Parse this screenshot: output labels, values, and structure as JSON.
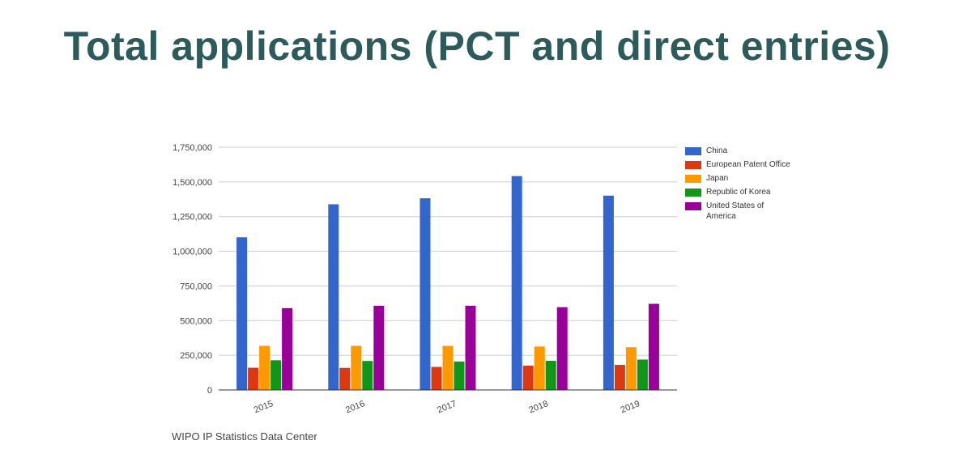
{
  "header": {
    "title": "Total applications (PCT and direct entries)"
  },
  "source": "WIPO IP Statistics Data Center",
  "chart_data": {
    "type": "bar",
    "categories": [
      "2015",
      "2016",
      "2017",
      "2018",
      "2019"
    ],
    "series": [
      {
        "name": "China",
        "color": "#3366cc",
        "values": [
          1101000,
          1339000,
          1382000,
          1542000,
          1401000
        ]
      },
      {
        "name": "European Patent Office",
        "color": "#dc3912",
        "values": [
          160000,
          159000,
          166000,
          175000,
          181000
        ]
      },
      {
        "name": "Japan",
        "color": "#ff9900",
        "values": [
          318000,
          318000,
          318000,
          313000,
          308000
        ]
      },
      {
        "name": "Republic of Korea",
        "color": "#109618",
        "values": [
          214000,
          209000,
          205000,
          210000,
          219000
        ]
      },
      {
        "name": "United States of America",
        "color": "#990099",
        "values": [
          590000,
          607000,
          607000,
          597000,
          621000
        ]
      }
    ],
    "yticks": [
      "0",
      "250,000",
      "500,000",
      "750,000",
      "1,000,000",
      "1,250,000",
      "1,500,000",
      "1,750,000"
    ],
    "ylim": [
      0,
      1750000
    ],
    "grid": true,
    "legend_position": "right"
  }
}
